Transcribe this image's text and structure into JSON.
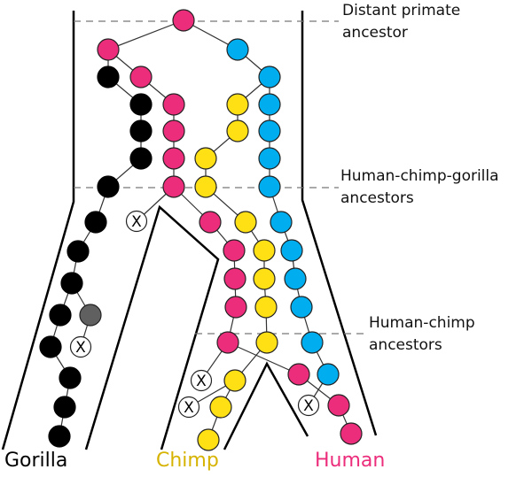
{
  "labels": {
    "distant_line1": "Distant primate",
    "distant_line2": "ancestor",
    "hcg_line1": "Human-chimp-gorilla",
    "hcg_line2": "ancestors",
    "hc_line1": "Human-chimp",
    "hc_line2": "ancestors"
  },
  "species": {
    "gorilla": "Gorilla",
    "chimp": "Chimp",
    "human": "Human"
  },
  "extinct_marker": "X",
  "colors": {
    "magenta": "#ec2d7b",
    "blue": "#00aeef",
    "yellow": "#ffe015",
    "black": "#000000",
    "gray": "#606060",
    "chimp_label": "#d6b300",
    "human_label": "#ec2d7b"
  }
}
